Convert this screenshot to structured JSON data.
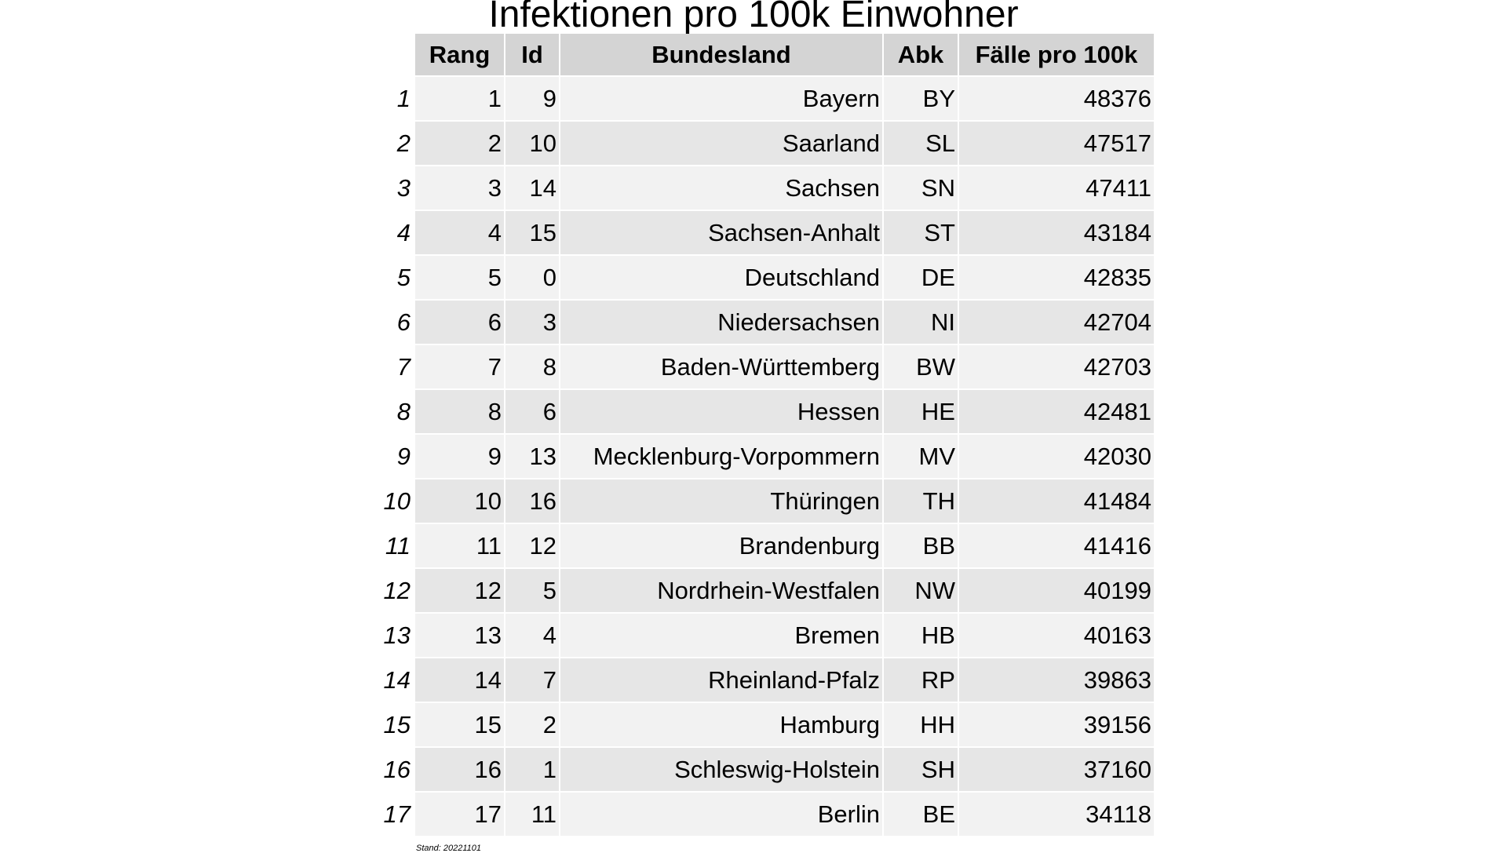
{
  "chart_data": {
    "type": "table",
    "title": "Infektionen pro 100k Einwohner",
    "columns": [
      "Rang",
      "Id",
      "Bundesland",
      "Abk",
      "Fälle pro 100k"
    ],
    "rows": [
      {
        "index": "1",
        "rang": 1,
        "id": 9,
        "bundesland": "Bayern",
        "abk": "BY",
        "faelle": 48376
      },
      {
        "index": "2",
        "rang": 2,
        "id": 10,
        "bundesland": "Saarland",
        "abk": "SL",
        "faelle": 47517
      },
      {
        "index": "3",
        "rang": 3,
        "id": 14,
        "bundesland": "Sachsen",
        "abk": "SN",
        "faelle": 47411
      },
      {
        "index": "4",
        "rang": 4,
        "id": 15,
        "bundesland": "Sachsen-Anhalt",
        "abk": "ST",
        "faelle": 43184
      },
      {
        "index": "5",
        "rang": 5,
        "id": 0,
        "bundesland": "Deutschland",
        "abk": "DE",
        "faelle": 42835
      },
      {
        "index": "6",
        "rang": 6,
        "id": 3,
        "bundesland": "Niedersachsen",
        "abk": "NI",
        "faelle": 42704
      },
      {
        "index": "7",
        "rang": 7,
        "id": 8,
        "bundesland": "Baden-Württemberg",
        "abk": "BW",
        "faelle": 42703
      },
      {
        "index": "8",
        "rang": 8,
        "id": 6,
        "bundesland": "Hessen",
        "abk": "HE",
        "faelle": 42481
      },
      {
        "index": "9",
        "rang": 9,
        "id": 13,
        "bundesland": "Mecklenburg-Vorpommern",
        "abk": "MV",
        "faelle": 42030
      },
      {
        "index": "10",
        "rang": 10,
        "id": 16,
        "bundesland": "Thüringen",
        "abk": "TH",
        "faelle": 41484
      },
      {
        "index": "11",
        "rang": 11,
        "id": 12,
        "bundesland": "Brandenburg",
        "abk": "BB",
        "faelle": 41416
      },
      {
        "index": "12",
        "rang": 12,
        "id": 5,
        "bundesland": "Nordrhein-Westfalen",
        "abk": "NW",
        "faelle": 40199
      },
      {
        "index": "13",
        "rang": 13,
        "id": 4,
        "bundesland": "Bremen",
        "abk": "HB",
        "faelle": 40163
      },
      {
        "index": "14",
        "rang": 14,
        "id": 7,
        "bundesland": "Rheinland-Pfalz",
        "abk": "RP",
        "faelle": 39863
      },
      {
        "index": "15",
        "rang": 15,
        "id": 2,
        "bundesland": "Hamburg",
        "abk": "HH",
        "faelle": 39156
      },
      {
        "index": "16",
        "rang": 16,
        "id": 1,
        "bundesland": "Schleswig-Holstein",
        "abk": "SH",
        "faelle": 37160
      },
      {
        "index": "17",
        "rang": 17,
        "id": 11,
        "bundesland": "Berlin",
        "abk": "BE",
        "faelle": 34118
      }
    ],
    "footnote": "Stand: 20221101",
    "colors": {
      "header_bg": "#d4d4d4",
      "row_bg_light": "#f2f2f2",
      "row_bg_dark": "#e6e6e6"
    }
  }
}
